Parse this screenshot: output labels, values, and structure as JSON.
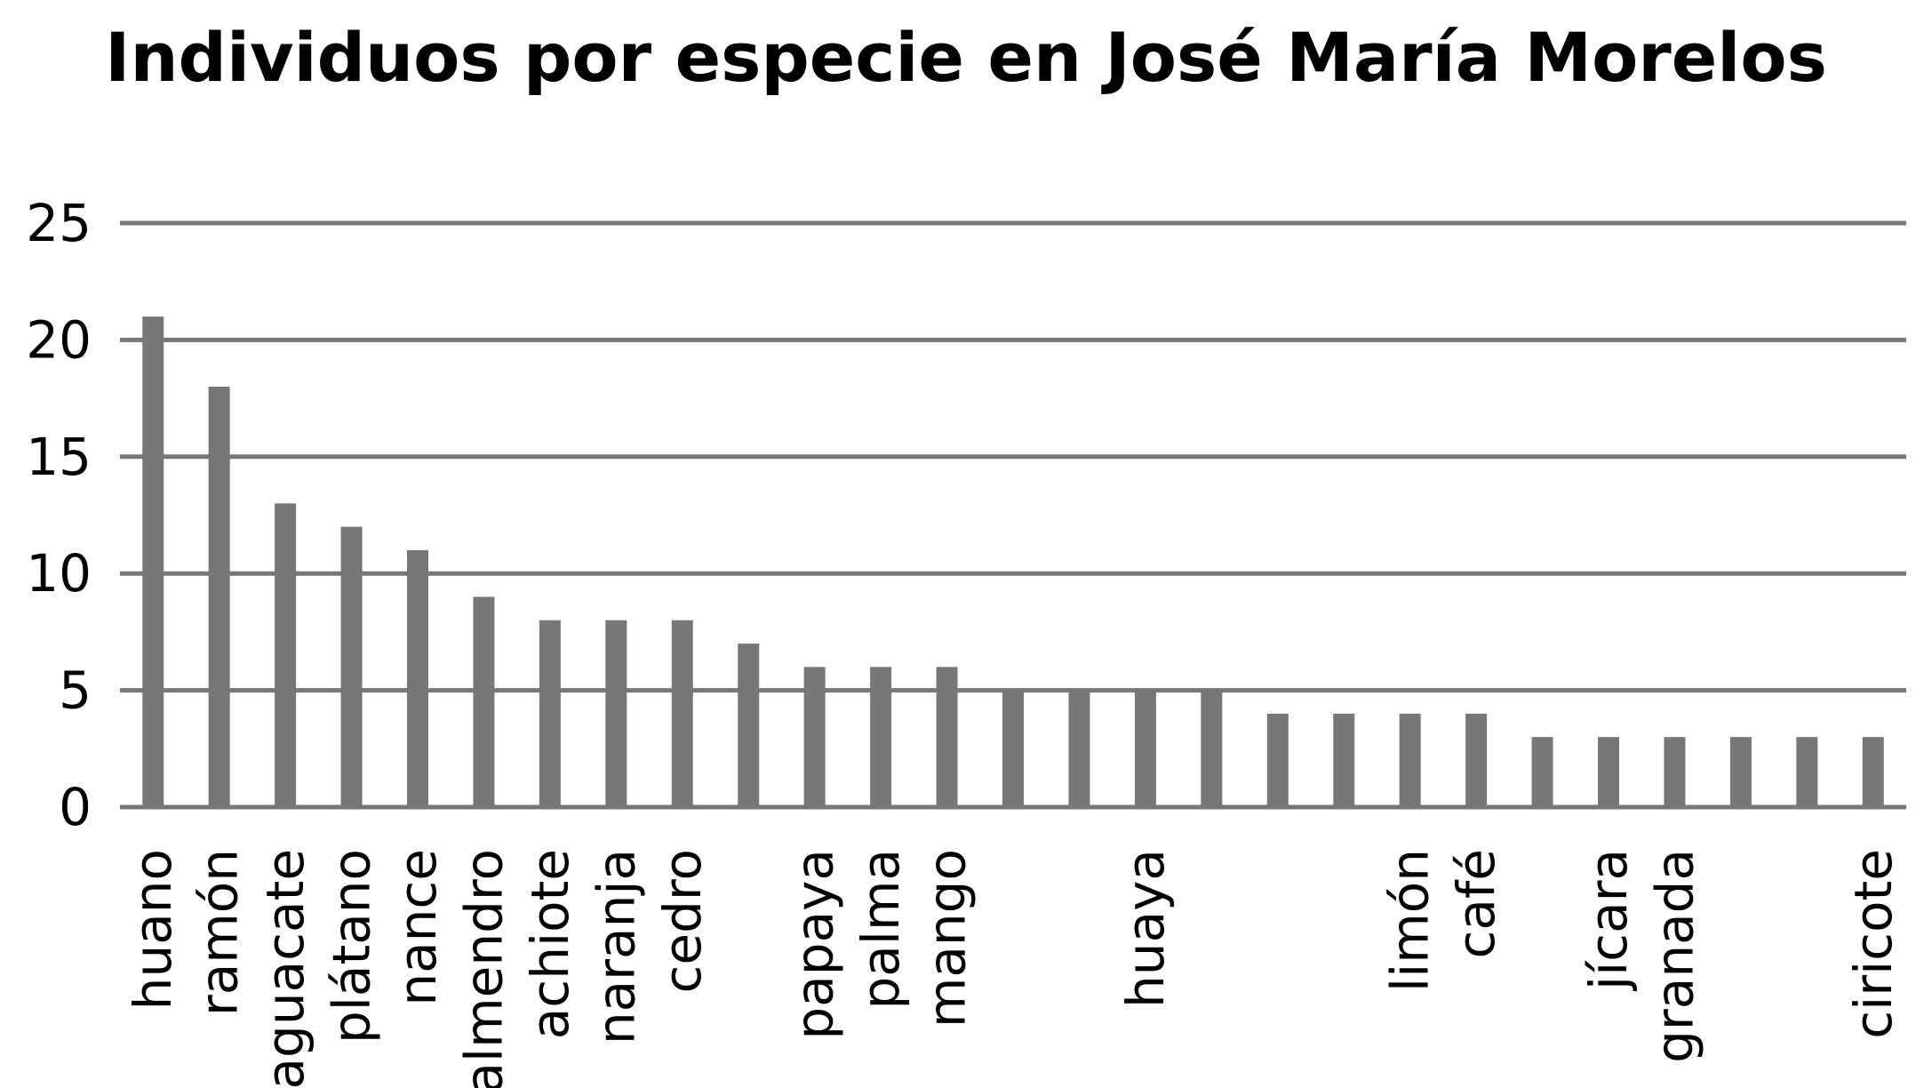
{
  "chart_data": {
    "type": "bar",
    "title": "Individuos por especie en José María Morelos",
    "xlabel": "",
    "ylabel": "",
    "ylim": [
      0,
      25
    ],
    "yticks": [
      0,
      5,
      10,
      15,
      20,
      25
    ],
    "grid": true,
    "legend": "none",
    "bar_color": "#777777",
    "grid_color": "#777777",
    "categories": [
      "huano",
      "ramón",
      "aguacate",
      "plátano",
      "nance",
      "almendro",
      "achiote",
      "naranja",
      "cedro",
      "",
      "papaya",
      "palma",
      "mango",
      "",
      "",
      "huaya",
      "",
      "",
      "",
      "limón",
      "café",
      "",
      "jícara",
      "granada",
      "",
      "",
      "ciricote"
    ],
    "values": [
      21,
      18,
      13,
      12,
      11,
      9,
      8,
      8,
      8,
      7,
      6,
      6,
      6,
      5,
      5,
      5,
      5,
      4,
      4,
      4,
      4,
      3,
      3,
      3,
      3,
      3,
      3
    ]
  }
}
